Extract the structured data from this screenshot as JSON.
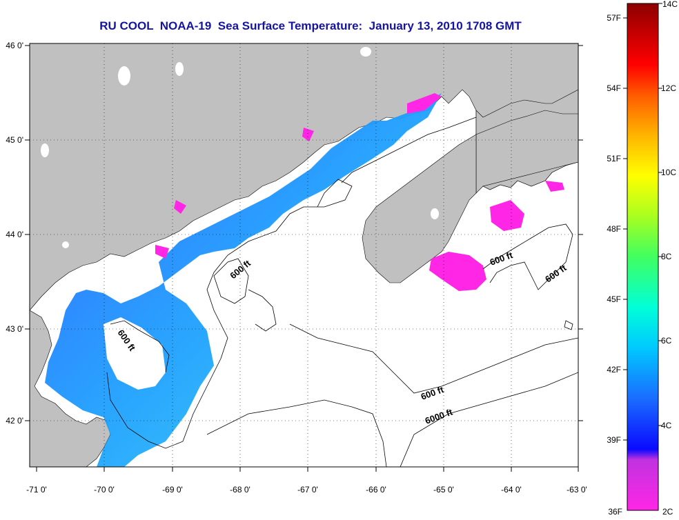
{
  "title": "RU COOL  NOAA-19  Sea Surface Temperature:  January 13, 2010 1708 GMT",
  "map": {
    "lon_ticks": [
      "-71 0'",
      "-70 0'",
      "-69 0'",
      "-68 0'",
      "-67 0'",
      "-66 0'",
      "-65 0'",
      "-64 0'",
      "-63 0'"
    ],
    "lat_ticks": [
      "46 0'",
      "45 0'",
      "44 0'",
      "43 0'",
      "42 0'"
    ],
    "contour_labels": [
      "600 ft",
      "600 ft",
      "600 ft",
      "600 ft",
      "600 ft",
      "6000 ft"
    ],
    "land_color": "#c0c0c0",
    "ocean_color": "#ffffff"
  },
  "colorbar": {
    "fahrenheit": [
      "57F",
      "54F",
      "51F",
      "48F",
      "45F",
      "42F",
      "39F",
      "36F"
    ],
    "celsius": [
      "14C",
      "12C",
      "10C",
      "8C",
      "6C",
      "4C",
      "2C"
    ]
  }
}
